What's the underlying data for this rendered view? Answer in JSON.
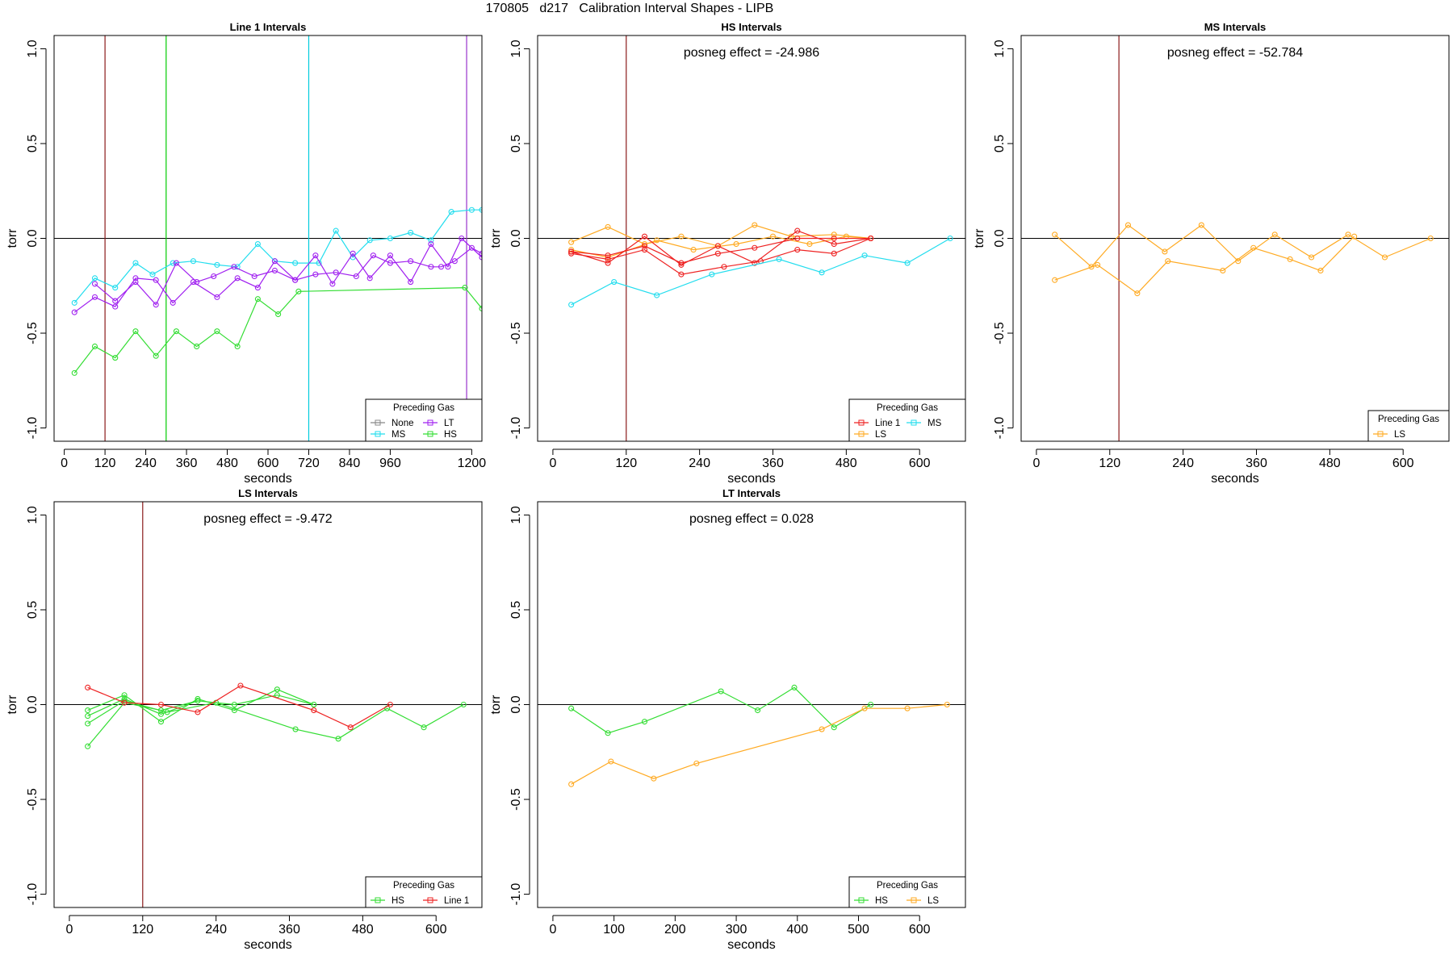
{
  "figure": {
    "title": "170805   d217   Calibration Interval Shapes - LIPB"
  },
  "chart_data": [
    {
      "type": "line",
      "title": "Line 1 Intervals",
      "xlabel": "seconds",
      "ylabel": "torr",
      "xlim": [
        -30,
        1230
      ],
      "ylim": [
        -1.07,
        1.07
      ],
      "xticks": [
        0,
        120,
        240,
        360,
        480,
        600,
        720,
        840,
        960,
        1200
      ],
      "yticks": [
        -1.0,
        -0.5,
        0.0,
        0.5,
        1.0
      ],
      "ytick_labels": [
        "-1.0",
        "-0.5",
        "0.0",
        "0.5",
        "1.0"
      ],
      "hline": 0,
      "vlines": [
        {
          "x": 120,
          "color": "#8B1A1A"
        },
        {
          "x": 300,
          "color": "#00CC00"
        },
        {
          "x": 720,
          "color": "#00CCDD"
        },
        {
          "x": 1185,
          "color": "#9932CC"
        }
      ],
      "annotation": "",
      "legend": {
        "title": "Preceding Gas",
        "position": "bottom-right",
        "columns": 2,
        "entries": [
          {
            "name": "None",
            "color": "#888888"
          },
          {
            "name": "LT",
            "color": "#A020F0"
          },
          {
            "name": "MS",
            "color": "#22DDEE"
          },
          {
            "name": "HS",
            "color": "#33DD33"
          }
        ]
      },
      "series": [
        {
          "name": "MS",
          "color": "#22DDEE",
          "x": [
            30,
            90,
            150,
            210,
            260,
            320,
            380,
            450,
            510,
            570,
            620,
            680,
            750,
            800,
            850,
            900,
            960,
            1020,
            1080,
            1140,
            1200,
            1230
          ],
          "y": [
            -0.34,
            -0.21,
            -0.26,
            -0.13,
            -0.19,
            -0.13,
            -0.12,
            -0.14,
            -0.15,
            -0.03,
            -0.12,
            -0.13,
            -0.13,
            0.04,
            -0.1,
            -0.01,
            0.0,
            0.03,
            -0.01,
            0.14,
            0.15,
            0.15
          ]
        },
        {
          "name": "LT",
          "color": "#A020F0",
          "x": [
            30,
            90,
            150,
            210,
            270,
            320,
            380,
            450,
            510,
            570,
            620,
            680,
            740,
            790,
            850,
            900,
            960,
            1020,
            1080,
            1130,
            1170,
            1230
          ],
          "y": [
            -0.39,
            -0.31,
            -0.36,
            -0.21,
            -0.22,
            -0.34,
            -0.23,
            -0.31,
            -0.21,
            -0.26,
            -0.12,
            -0.22,
            -0.09,
            -0.24,
            -0.08,
            -0.21,
            -0.09,
            -0.23,
            -0.03,
            -0.15,
            0.0,
            -0.1
          ]
        },
        {
          "name": "LT",
          "color": "#A020F0",
          "x": [
            90,
            150,
            210,
            270,
            330,
            390,
            440,
            500,
            560,
            620,
            680,
            740,
            800,
            860,
            910,
            960,
            1020,
            1080,
            1110,
            1150,
            1200,
            1230
          ],
          "y": [
            -0.24,
            -0.33,
            -0.23,
            -0.35,
            -0.13,
            -0.23,
            -0.2,
            -0.15,
            -0.2,
            -0.17,
            -0.22,
            -0.19,
            -0.18,
            -0.2,
            -0.09,
            -0.13,
            -0.12,
            -0.15,
            -0.15,
            -0.12,
            -0.05,
            -0.08
          ]
        },
        {
          "name": "HS",
          "color": "#33DD33",
          "x": [
            30,
            90,
            150,
            210,
            270,
            330,
            390,
            450,
            510,
            570,
            630,
            690,
            1180,
            1230
          ],
          "y": [
            -0.71,
            -0.57,
            -0.63,
            -0.49,
            -0.62,
            -0.49,
            -0.57,
            -0.49,
            -0.57,
            -0.32,
            -0.4,
            -0.28,
            -0.26,
            -0.37
          ]
        }
      ]
    },
    {
      "type": "line",
      "title": "HS Intervals",
      "xlabel": "seconds",
      "ylabel": "torr",
      "xlim": [
        -25,
        675
      ],
      "ylim": [
        -1.07,
        1.07
      ],
      "xticks": [
        0,
        120,
        240,
        360,
        480,
        600
      ],
      "yticks": [
        -1.0,
        -0.5,
        0.0,
        0.5,
        1.0
      ],
      "ytick_labels": [
        "-1.0",
        "-0.5",
        "0.0",
        "0.5",
        "1.0"
      ],
      "hline": 0,
      "vlines": [
        {
          "x": 120,
          "color": "#8B1A1A"
        }
      ],
      "annotation": "posneg effect = -24.986",
      "legend": {
        "title": "Preceding Gas",
        "position": "bottom-right",
        "columns": 2,
        "entries": [
          {
            "name": "Line 1",
            "color": "#EE2222"
          },
          {
            "name": "MS",
            "color": "#22DDEE"
          },
          {
            "name": "LS",
            "color": "#FFAA22"
          }
        ]
      },
      "series": [
        {
          "name": "LS",
          "color": "#FFAA22",
          "x": [
            30,
            90,
            150,
            210,
            270,
            330,
            390,
            460,
            520
          ],
          "y": [
            -0.02,
            0.06,
            -0.03,
            0.01,
            -0.04,
            0.07,
            0.01,
            0.02,
            0.0
          ]
        },
        {
          "name": "LS",
          "color": "#FFAA22",
          "x": [
            30,
            90,
            170,
            230,
            300,
            360,
            420,
            480,
            520
          ],
          "y": [
            -0.06,
            -0.1,
            -0.01,
            -0.06,
            -0.03,
            0.01,
            -0.03,
            0.01,
            0.0
          ]
        },
        {
          "name": "Line 1",
          "color": "#EE2222",
          "x": [
            30,
            90,
            150,
            210,
            270,
            330,
            400,
            460,
            520
          ],
          "y": [
            -0.07,
            -0.13,
            0.01,
            -0.14,
            -0.04,
            -0.13,
            0.04,
            -0.03,
            0.0
          ]
        },
        {
          "name": "Line 1",
          "color": "#EE2222",
          "x": [
            30,
            90,
            150,
            210,
            280,
            340,
            400,
            460,
            520
          ],
          "y": [
            -0.08,
            -0.11,
            -0.06,
            -0.19,
            -0.15,
            -0.12,
            -0.06,
            -0.08,
            0.0
          ]
        },
        {
          "name": "Line 1",
          "color": "#EE2222",
          "x": [
            30,
            90,
            150,
            210,
            270,
            330,
            400,
            460,
            520
          ],
          "y": [
            -0.07,
            -0.09,
            -0.04,
            -0.13,
            -0.08,
            -0.05,
            0.0,
            0.0,
            0.0
          ]
        },
        {
          "name": "MS",
          "color": "#22DDEE",
          "x": [
            30,
            100,
            170,
            260,
            370,
            440,
            510,
            580,
            650
          ],
          "y": [
            -0.35,
            -0.23,
            -0.3,
            -0.19,
            -0.11,
            -0.18,
            -0.09,
            -0.13,
            0.0
          ]
        }
      ]
    },
    {
      "type": "line",
      "title": "MS Intervals",
      "xlabel": "seconds",
      "ylabel": "torr",
      "xlim": [
        -25,
        675
      ],
      "ylim": [
        -1.07,
        1.07
      ],
      "xticks": [
        0,
        120,
        240,
        360,
        480,
        600
      ],
      "yticks": [
        -1.0,
        -0.5,
        0.0,
        0.5,
        1.0
      ],
      "ytick_labels": [
        "-1.0",
        "-0.5",
        "0.0",
        "0.5",
        "1.0"
      ],
      "hline": 0,
      "vlines": [
        {
          "x": 135,
          "color": "#8B1A1A"
        }
      ],
      "annotation": "posneg effect = -52.784",
      "legend": {
        "title": "Preceding Gas",
        "position": "bottom-right",
        "columns": 1,
        "entries": [
          {
            "name": "LS",
            "color": "#FFAA22"
          }
        ]
      },
      "series": [
        {
          "name": "LS",
          "color": "#FFAA22",
          "x": [
            30,
            90,
            150,
            210,
            270,
            330,
            390,
            450,
            510,
            570,
            645
          ],
          "y": [
            0.02,
            -0.15,
            0.07,
            -0.07,
            0.07,
            -0.12,
            0.02,
            -0.1,
            0.02,
            -0.1,
            0.0
          ]
        },
        {
          "name": "LS",
          "color": "#FFAA22",
          "x": [
            30,
            100,
            165,
            215,
            305,
            355,
            415,
            465,
            520
          ],
          "y": [
            -0.22,
            -0.14,
            -0.29,
            -0.12,
            -0.17,
            -0.05,
            -0.11,
            -0.17,
            0.01
          ]
        }
      ]
    },
    {
      "type": "line",
      "title": "LS Intervals",
      "xlabel": "seconds",
      "ylabel": "torr",
      "xlim": [
        -25,
        675
      ],
      "ylim": [
        -1.07,
        1.07
      ],
      "xticks": [
        0,
        120,
        240,
        360,
        480,
        600
      ],
      "yticks": [
        -1.0,
        -0.5,
        0.0,
        0.5,
        1.0
      ],
      "ytick_labels": [
        "-1.0",
        "-0.5",
        "0.0",
        "0.5",
        "1.0"
      ],
      "hline": 0,
      "vlines": [
        {
          "x": 120,
          "color": "#8B1A1A"
        }
      ],
      "annotation": "posneg effect = -9.472",
      "legend": {
        "title": "Preceding Gas",
        "position": "bottom-right",
        "columns": 2,
        "entries": [
          {
            "name": "HS",
            "color": "#33DD33"
          },
          {
            "name": "Line 1",
            "color": "#EE2222"
          }
        ]
      },
      "series": [
        {
          "name": "HS",
          "color": "#33DD33",
          "x": [
            30,
            90,
            150,
            210,
            270,
            340,
            400
          ],
          "y": [
            -0.03,
            0.05,
            -0.09,
            0.03,
            -0.03,
            0.08,
            0.0
          ]
        },
        {
          "name": "HS",
          "color": "#33DD33",
          "x": [
            30,
            90,
            150,
            210,
            270,
            340,
            400
          ],
          "y": [
            -0.06,
            0.03,
            -0.05,
            0.02,
            0.0,
            0.05,
            0.0
          ]
        },
        {
          "name": "HS",
          "color": "#33DD33",
          "x": [
            30,
            90,
            160,
            240,
            370,
            440,
            520,
            580,
            645
          ],
          "y": [
            -0.1,
            0.02,
            -0.04,
            0.01,
            -0.13,
            -0.18,
            -0.02,
            -0.12,
            0.0
          ]
        },
        {
          "name": "HS",
          "color": "#33DD33",
          "x": [
            30,
            90,
            150,
            210
          ],
          "y": [
            -0.22,
            0.01,
            -0.03,
            0.02
          ]
        },
        {
          "name": "Line 1",
          "color": "#EE2222",
          "x": [
            30,
            90,
            150,
            210,
            280,
            400,
            460,
            525
          ],
          "y": [
            0.09,
            0.01,
            0.0,
            -0.04,
            0.1,
            -0.03,
            -0.12,
            0.0
          ]
        }
      ]
    },
    {
      "type": "line",
      "title": "LT Intervals",
      "xlabel": "seconds",
      "ylabel": "torr",
      "xlim": [
        -25,
        675
      ],
      "ylim": [
        -1.07,
        1.07
      ],
      "xticks": [
        0,
        100,
        200,
        300,
        400,
        500,
        600
      ],
      "yticks": [
        -1.0,
        -0.5,
        0.0,
        0.5,
        1.0
      ],
      "ytick_labels": [
        "-1.0",
        "-0.5",
        "0.0",
        "0.5",
        "1.0"
      ],
      "hline": 0,
      "vlines": [],
      "annotation": "posneg effect = 0.028",
      "legend": {
        "title": "Preceding Gas",
        "position": "bottom-right",
        "columns": 2,
        "entries": [
          {
            "name": "HS",
            "color": "#33DD33"
          },
          {
            "name": "LS",
            "color": "#FFAA22"
          }
        ]
      },
      "series": [
        {
          "name": "HS",
          "color": "#33DD33",
          "x": [
            30,
            90,
            150,
            275,
            335,
            395,
            460,
            520
          ],
          "y": [
            -0.02,
            -0.15,
            -0.09,
            0.07,
            -0.03,
            0.09,
            -0.12,
            0.0
          ]
        },
        {
          "name": "LS",
          "color": "#FFAA22",
          "x": [
            30,
            95,
            165,
            235,
            440,
            510,
            580,
            645
          ],
          "y": [
            -0.42,
            -0.3,
            -0.39,
            -0.31,
            -0.13,
            -0.02,
            -0.02,
            0.0
          ]
        }
      ]
    }
  ]
}
